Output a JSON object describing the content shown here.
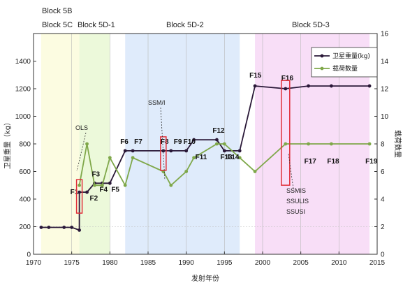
{
  "chart_data": {
    "type": "line",
    "xlabel": "发射年份",
    "ylabel_left": "卫星重量（kg）",
    "ylabel_right": "载荷数量",
    "xlim": [
      1970,
      2015
    ],
    "ylim_left": [
      0,
      1600
    ],
    "ylim_right": [
      0,
      16
    ],
    "xticks": [
      1970,
      1975,
      1980,
      1985,
      1990,
      1995,
      2000,
      2005,
      2010,
      2015
    ],
    "yticks_left": [
      0,
      200,
      400,
      600,
      800,
      1000,
      1200,
      1400
    ],
    "yticks_right": [
      0,
      2,
      4,
      6,
      8,
      10,
      12,
      14,
      16
    ],
    "colors": {
      "weight": "#2a1838",
      "payload": "#7fa84a",
      "block_5b_5c": "#fbfbdc",
      "block_5d1": "#e9f8d4",
      "block_5d2": "#d9e7fa",
      "block_5d3": "#f7d8f6",
      "highlight_box": "#e0303a"
    },
    "blocks": [
      {
        "label": "Block 5B",
        "x_start": 1971,
        "x_end": 1976
      },
      {
        "label": "Block 5C",
        "x_start": 1971,
        "x_end": 1976
      },
      {
        "label": "Block 5D-1",
        "x_start": 1976,
        "x_end": 1980
      },
      {
        "label": "Block 5D-2",
        "x_start": 1982,
        "x_end": 1997
      },
      {
        "label": "Block 5D-3",
        "x_start": 1999,
        "x_end": 2014
      }
    ],
    "legend": {
      "placement": "top-right",
      "entries": [
        "卫星重量(kg)",
        "载荷数量"
      ]
    },
    "series": [
      {
        "name": "卫星重量(kg)",
        "axis": "left",
        "x": [
          1971,
          1972,
          1974,
          1975,
          1976,
          1976,
          1977,
          1978,
          1979,
          1980,
          1982,
          1983,
          1987,
          1988,
          1990,
          1991,
          1994,
          1995,
          1997,
          1999,
          2003,
          2006,
          2009,
          2014
        ],
        "y": [
          195,
          195,
          195,
          195,
          175,
          450,
          450,
          515,
          515,
          515,
          750,
          750,
          750,
          750,
          750,
          830,
          830,
          750,
          750,
          1220,
          1200,
          1220,
          1220,
          1220
        ]
      },
      {
        "name": "载荷数量",
        "axis": "right",
        "x": [
          1976,
          1977,
          1978,
          1979,
          1980,
          1982,
          1983,
          1987,
          1988,
          1990,
          1991,
          1994,
          1995,
          1997,
          1999,
          2003,
          2006,
          2009,
          2014
        ],
        "y": [
          5,
          8,
          5,
          5,
          7,
          5,
          7,
          6,
          5,
          6,
          7,
          8,
          8,
          7,
          6,
          8,
          8,
          8,
          8
        ]
      }
    ],
    "flight_labels": [
      {
        "text": "F1",
        "x": 1976,
        "axis": "left",
        "y": 450
      },
      {
        "text": "F2",
        "x": 1977,
        "axis": "left",
        "y": 450
      },
      {
        "text": "F3",
        "x": 1978,
        "axis": "left",
        "y": 515
      },
      {
        "text": "F4",
        "x": 1979,
        "axis": "left",
        "y": 515
      },
      {
        "text": "F5",
        "x": 1980,
        "axis": "left",
        "y": 515
      },
      {
        "text": "F6",
        "x": 1982,
        "axis": "left",
        "y": 750
      },
      {
        "text": "F7",
        "x": 1983,
        "axis": "left",
        "y": 750
      },
      {
        "text": "F8",
        "x": 1987,
        "axis": "left",
        "y": 750
      },
      {
        "text": "F9",
        "x": 1988,
        "axis": "left",
        "y": 750
      },
      {
        "text": "F10",
        "x": 1990,
        "axis": "left",
        "y": 750
      },
      {
        "text": "F11",
        "x": 1991,
        "axis": "left",
        "y": 750
      },
      {
        "text": "F12",
        "x": 1994,
        "axis": "left",
        "y": 830
      },
      {
        "text": "F13",
        "x": 1995,
        "axis": "left",
        "y": 750
      },
      {
        "text": "F14",
        "x": 1997,
        "axis": "left",
        "y": 750
      },
      {
        "text": "F15",
        "x": 1999,
        "axis": "left",
        "y": 1220
      },
      {
        "text": "F16",
        "x": 2003,
        "axis": "left",
        "y": 1200
      },
      {
        "text": "F17",
        "x": 2006,
        "axis": "left",
        "y": 800
      },
      {
        "text": "F18",
        "x": 2009,
        "axis": "left",
        "y": 800
      },
      {
        "text": "F19",
        "x": 2014,
        "axis": "left",
        "y": 800
      }
    ],
    "annotations": [
      {
        "text": "OLS",
        "x": 1976,
        "y_left": 450
      },
      {
        "text": "SSM/I",
        "x": 1987,
        "y_left": 750
      },
      {
        "text": "SSMIS\nSSULIS\nSSUSI",
        "x": 2003,
        "y_left": 800
      }
    ]
  }
}
